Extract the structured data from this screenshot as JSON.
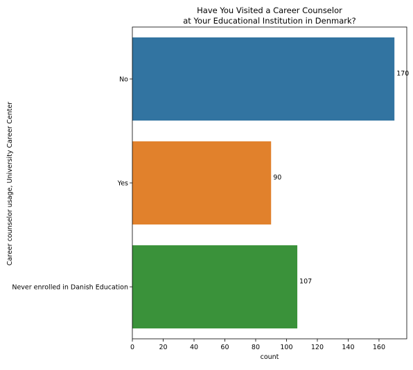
{
  "chart_data": {
    "type": "bar",
    "orientation": "horizontal",
    "title": "Have You Visited a Career Counselor\nat Your Educational Institution in Denmark?",
    "xlabel": "count",
    "ylabel": "Career counselor usage, University Career Center",
    "categories": [
      "No",
      "Yes",
      "Never enrolled in Danish Education"
    ],
    "values": [
      170,
      90,
      107
    ],
    "data_labels": [
      "170",
      "90",
      "107"
    ],
    "colors": [
      "#3274a1",
      "#e1812c",
      "#3a923a"
    ],
    "xlim": [
      0,
      178
    ],
    "xticks": [
      0,
      20,
      40,
      60,
      80,
      100,
      120,
      140,
      160
    ],
    "grid": false,
    "legend": "none"
  }
}
